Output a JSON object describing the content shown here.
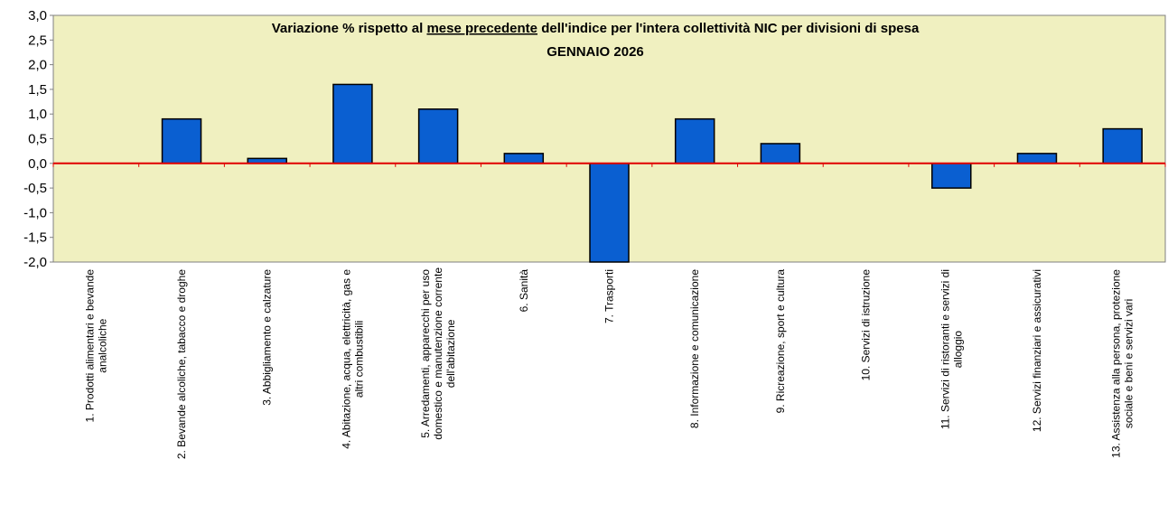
{
  "chart_data": {
    "type": "bar",
    "title": "GENNAIO 2026",
    "title_parts": {
      "prefix": "Variazione % rispetto al ",
      "underlined": "mese precedente",
      "suffix": " dell'indice per l'intera collettività NIC per divisioni di spesa"
    },
    "categories": [
      [
        "1. Prodotti alimentari e bevande",
        "analcoliche"
      ],
      [
        "2. Bevande alcoliche, tabacco e droghe"
      ],
      [
        "3. Abbigliamento e calzature"
      ],
      [
        "4. Abitazione, acqua, elettricità, gas e",
        "altri combustibili"
      ],
      [
        "5. Arredamenti, apparecchi per uso",
        "domestico e manutenzione corrente",
        "dell'abitazione"
      ],
      [
        "6. Sanità"
      ],
      [
        "7. Trasporti"
      ],
      [
        "8. Informazione e comunicazione"
      ],
      [
        "9. Ricreazione, sport e cultura"
      ],
      [
        "10. Servizi di istruzione"
      ],
      [
        "11. Servizi di ristoranti e servizi di",
        "alloggio"
      ],
      [
        "12. Servizi finanziari e assicurativi"
      ],
      [
        "13. Assistenza alla persona, protezione",
        "sociale e beni e servizi vari"
      ]
    ],
    "values": [
      0.0,
      0.9,
      0.1,
      1.6,
      1.1,
      0.2,
      -2.0,
      0.9,
      0.4,
      0.0,
      -0.5,
      0.2,
      0.7
    ],
    "ylim": [
      -2.0,
      3.0
    ],
    "yticks": [
      "3,0",
      "2,5",
      "2,0",
      "1,5",
      "1,0",
      "0,5",
      "0,0",
      "-0,5",
      "-1,0",
      "-1,5",
      "-2,0"
    ],
    "ytick_values": [
      3.0,
      2.5,
      2.0,
      1.5,
      1.0,
      0.5,
      0.0,
      -0.5,
      -1.0,
      -1.5,
      -2.0
    ],
    "xlabel": "",
    "ylabel": "",
    "grid": false,
    "legend": "none",
    "colors": {
      "bar_fill": "#0a5fd1",
      "bar_stroke": "#000000",
      "plot_bg": "#f0f0c0",
      "zero_line": "#e00000",
      "axis": "#808080"
    }
  }
}
